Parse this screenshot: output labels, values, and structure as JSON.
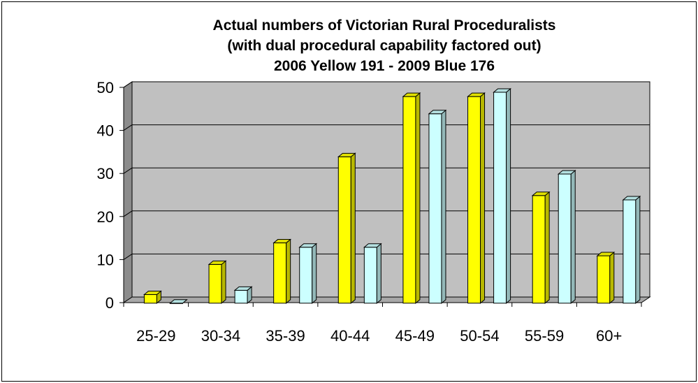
{
  "chart_data": {
    "type": "bar",
    "title": [
      "Actual numbers of Victorian Rural Proceduralists",
      "(with dual procedural capability factored out)",
      "2006 Yellow 191 - 2009 Blue 176"
    ],
    "categories": [
      "25-29",
      "30-34",
      "35-39",
      "40-44",
      "45-49",
      "50-54",
      "55-59",
      "60+"
    ],
    "series": [
      {
        "values": [
          2,
          9,
          14,
          34,
          48,
          48,
          25,
          11
        ],
        "color": "#ffff00"
      },
      {
        "values": [
          0,
          3,
          13,
          13,
          44,
          49,
          30,
          24
        ],
        "color": "#ccffff"
      }
    ],
    "ylim": [
      0,
      50
    ],
    "yticks": [
      0,
      10,
      20,
      30,
      40,
      50
    ],
    "grid": true,
    "legend": "none",
    "plot_wall_color": "#c0c0c0",
    "style": "3d-clustered-column"
  }
}
